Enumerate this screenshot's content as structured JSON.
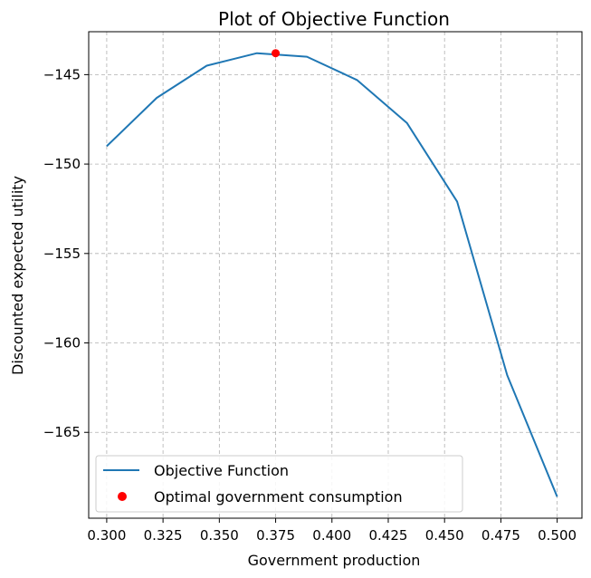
{
  "chart_data": {
    "type": "line",
    "title": "Plot of Objective Function",
    "xlabel": "Government production",
    "ylabel": "Discounted expected utility",
    "xlim": [
      0.292,
      0.511
    ],
    "ylim": [
      -169.8,
      -142.6
    ],
    "xticks": [
      0.3,
      0.325,
      0.35,
      0.375,
      0.4,
      0.425,
      0.45,
      0.475,
      0.5
    ],
    "xtick_labels": [
      "0.300",
      "0.325",
      "0.350",
      "0.375",
      "0.400",
      "0.425",
      "0.450",
      "0.475",
      "0.500"
    ],
    "yticks": [
      -145,
      -150,
      -155,
      -160,
      -165
    ],
    "ytick_labels": [
      "−145",
      "−150",
      "−155",
      "−160",
      "−165"
    ],
    "grid": true,
    "legend_position": "lower-left",
    "series": [
      {
        "name": "Objective Function",
        "kind": "line",
        "color": "#1f77b4",
        "x": [
          0.3,
          0.3222,
          0.3444,
          0.3667,
          0.3889,
          0.4111,
          0.4333,
          0.4556,
          0.4778,
          0.5
        ],
        "y": [
          -149.0,
          -146.3,
          -144.5,
          -143.8,
          -144.0,
          -145.3,
          -147.7,
          -152.1,
          -161.8,
          -168.6
        ]
      },
      {
        "name": "Optimal government consumption",
        "kind": "scatter",
        "color": "#ff0000",
        "x": [
          0.375
        ],
        "y": [
          -143.8
        ]
      }
    ]
  }
}
